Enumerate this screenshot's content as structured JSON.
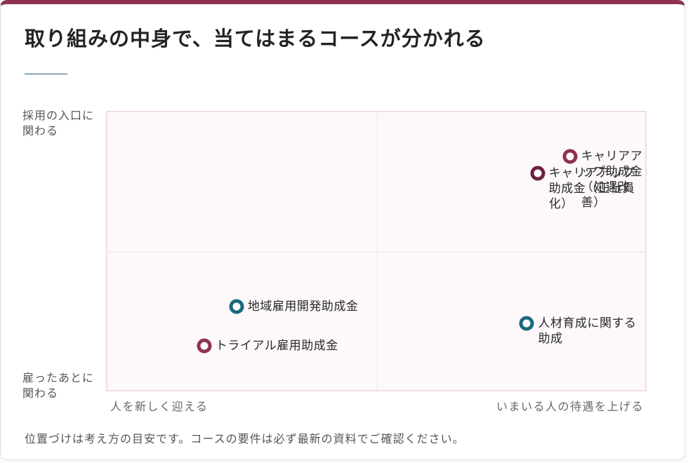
{
  "title": "取り組みの中身で、当てはまるコースが分かれる",
  "axes": {
    "y_top": "採用の入口に関わる",
    "y_bottom": "雇ったあとに関わる",
    "x_left": "人を新しく迎える",
    "x_right": "いまいる人の待遇を上げる"
  },
  "note": "位置づけは考え方の目安です。コースの要件は必ず最新の資料でご確認ください。",
  "colors": {
    "accent": "#8e3152",
    "dark_accent": "#6e2040",
    "teal": "#1b6a7e",
    "plot_bg": "#fdf8fa"
  },
  "chart_data": {
    "type": "scatter",
    "xlim": [
      0,
      100
    ],
    "ylim": [
      0,
      100
    ],
    "quadrant_dividers": {
      "x": 50,
      "y": 50
    },
    "grid": false,
    "points": [
      {
        "label": "キャリアアップ助成金（処遇改善）",
        "x": 86,
        "y": 84,
        "color": "#8e3152"
      },
      {
        "label": "キャリアアップ助成金（正社員化）",
        "x": 80,
        "y": 78,
        "color": "#6e2040"
      },
      {
        "label": "地域雇用開発助成金",
        "x": 24,
        "y": 30,
        "color": "#1b6a7e"
      },
      {
        "label": "人材育成に関する助成",
        "x": 78,
        "y": 24,
        "color": "#1b6a7e"
      },
      {
        "label": "トライアル雇用助成金",
        "x": 18,
        "y": 16,
        "color": "#8e3152"
      }
    ]
  }
}
